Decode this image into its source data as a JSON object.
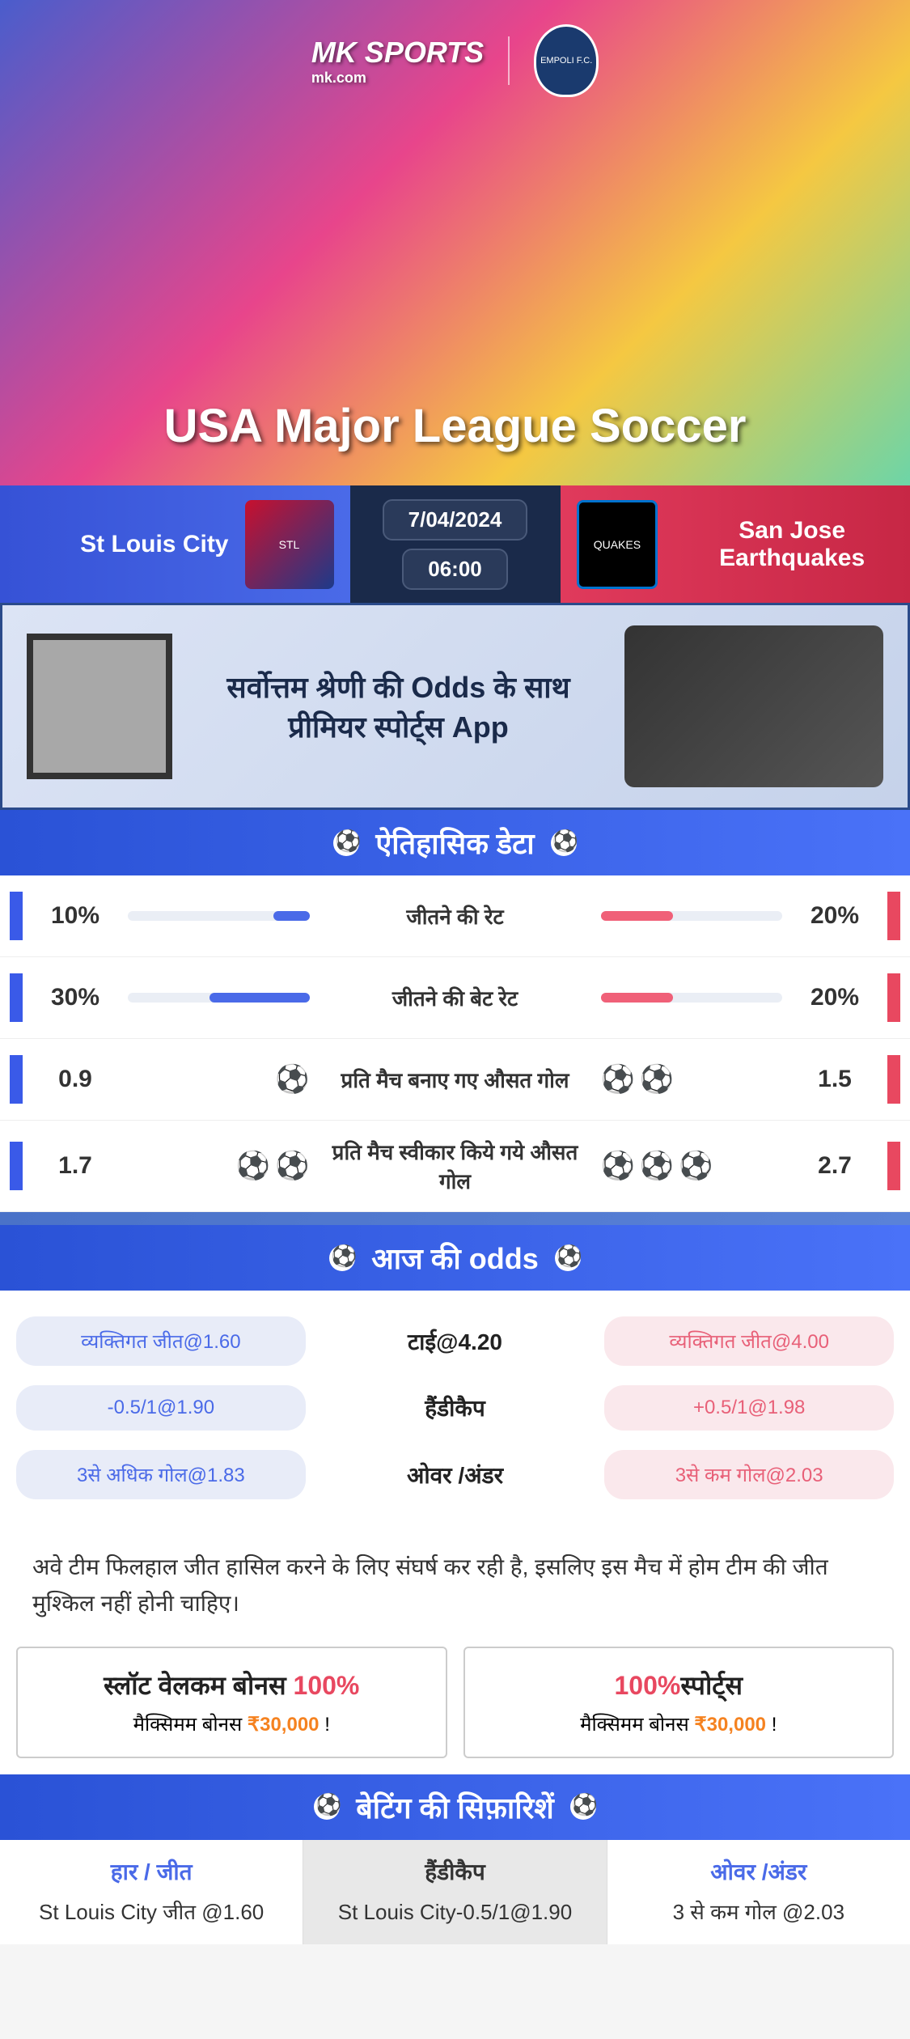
{
  "brand": {
    "name": "MK SPORTS",
    "site": "mk.com",
    "partner": "EMPOLI F.C."
  },
  "hero": {
    "league": "USA Major League Soccer"
  },
  "match": {
    "home": "St Louis City",
    "away": "San Jose Earthquakes",
    "date": "7/04/2024",
    "time": "06:00",
    "home_badge_bg": "#c8102e",
    "away_badge_bg": "#000000"
  },
  "promo": {
    "text": "सर्वोत्तम श्रेणी की Odds के साथ प्रीमियर स्पोर्ट्स App"
  },
  "historical": {
    "title": "ऐतिहासिक डेटा",
    "rows": [
      {
        "label": "जीतने की रेट",
        "home_val": "10%",
        "home_pct": 20,
        "away_val": "20%",
        "away_pct": 40,
        "type": "bar"
      },
      {
        "label": "जीतने की बेट रेट",
        "home_val": "30%",
        "home_pct": 55,
        "away_val": "20%",
        "away_pct": 40,
        "type": "bar"
      },
      {
        "label": "प्रति मैच बनाए गए औसत गोल",
        "home_val": "0.9",
        "home_icons": 1,
        "away_val": "1.5",
        "away_icons": 2,
        "type": "icon"
      },
      {
        "label": "प्रति मैच स्वीकार किये गये औसत गोल",
        "home_val": "1.7",
        "home_icons": 2,
        "away_val": "2.7",
        "away_icons": 3,
        "type": "icon"
      }
    ]
  },
  "odds": {
    "title": "आज की odds",
    "rows": [
      {
        "left": "व्यक्तिगत जीत@1.60",
        "center": "टाई@4.20",
        "right": "व्यक्तिगत जीत@4.00"
      },
      {
        "left": "-0.5/1@1.90",
        "center": "हैंडीकैप",
        "right": "+0.5/1@1.98"
      },
      {
        "left": "3से अधिक गोल@1.83",
        "center": "ओवर /अंडर",
        "right": "3से कम गोल@2.03"
      }
    ]
  },
  "analysis": "अवे टीम फिलहाल जीत हासिल करने के लिए संघर्ष कर रही है, इसलिए इस मैच में होम टीम की जीत मुश्किल नहीं होनी चाहिए।",
  "bonuses": [
    {
      "title_pre": "स्लॉट वेलकम बोनस ",
      "title_red": "100%",
      "sub_pre": "मैक्सिमम बोनस ",
      "sub_val": "₹30,000",
      "sub_post": "  !"
    },
    {
      "title_pre": "",
      "title_red": "100%",
      "title_post": "स्पोर्ट्स",
      "sub_pre": "मैक्सिमम बोनस  ",
      "sub_val": "₹30,000",
      "sub_post": " !"
    }
  ],
  "recommend": {
    "title": "बेटिंग की सिफ़ारिशें",
    "cols": [
      {
        "head": "हार / जीत",
        "body": "St Louis City जीत @1.60",
        "active": false
      },
      {
        "head": "हैंडीकैप",
        "body": "St Louis City-0.5/1@1.90",
        "active": true
      },
      {
        "head": "ओवर /अंडर",
        "body": "3 से कम गोल @2.03",
        "active": false
      }
    ]
  },
  "colors": {
    "blue": "#4a6ae8",
    "red": "#e84860",
    "header_grad_start": "#2a52d6",
    "header_grad_end": "#4a72f8"
  }
}
